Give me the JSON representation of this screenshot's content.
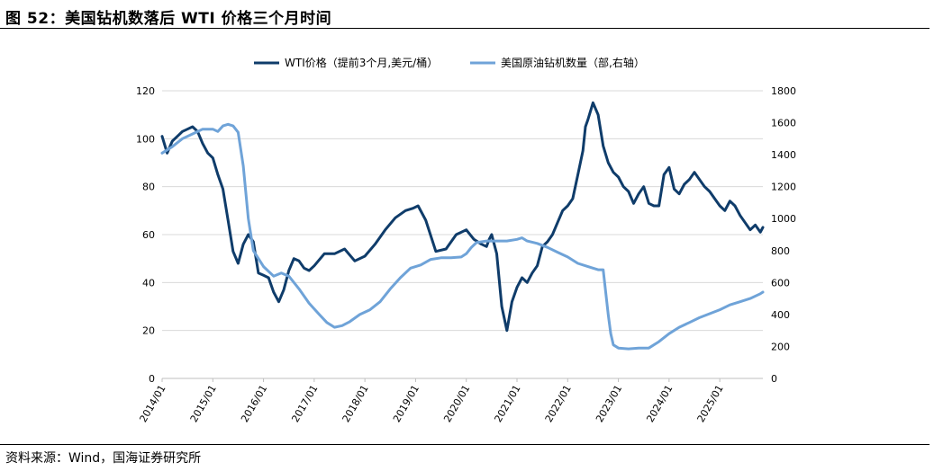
{
  "figure": {
    "title": "图 52：美国钻机数落后 WTI 价格三个月时间",
    "source": "资料来源：Wind，国海证券研究所"
  },
  "chart_data": {
    "type": "line",
    "title": "美国钻机数落后 WTI 价格三个月时间",
    "x_tick_labels": [
      "2014/01",
      "2015/01",
      "2016/01",
      "2017/01",
      "2018/01",
      "2019/01",
      "2020/01",
      "2021/01",
      "2022/01",
      "2023/01",
      "2024/01",
      "2025/01"
    ],
    "x_range": [
      2014.0,
      2025.85
    ],
    "left_axis": {
      "range": [
        0,
        120
      ],
      "ticks": [
        0,
        20,
        40,
        60,
        80,
        100,
        120
      ]
    },
    "right_axis": {
      "range": [
        0,
        1800
      ],
      "ticks": [
        0,
        200,
        400,
        600,
        800,
        1000,
        1200,
        1400,
        1600,
        1800
      ]
    },
    "legend_position": "top-center",
    "series": [
      {
        "name": "WTI价格（提前3个月,美元/桶）",
        "axis": "left",
        "color": "#0f3c6a",
        "x": [
          2014.0,
          2014.1,
          2014.2,
          2014.3,
          2014.4,
          2014.5,
          2014.6,
          2014.7,
          2014.8,
          2014.9,
          2015.0,
          2015.1,
          2015.2,
          2015.3,
          2015.4,
          2015.5,
          2015.6,
          2015.7,
          2015.8,
          2015.9,
          2016.0,
          2016.1,
          2016.2,
          2016.3,
          2016.4,
          2016.5,
          2016.6,
          2016.7,
          2016.8,
          2016.9,
          2017.0,
          2017.2,
          2017.4,
          2017.6,
          2017.8,
          2018.0,
          2018.2,
          2018.4,
          2018.6,
          2018.8,
          2018.95,
          2019.05,
          2019.2,
          2019.4,
          2019.6,
          2019.8,
          2020.0,
          2020.15,
          2020.3,
          2020.4,
          2020.45,
          2020.5,
          2020.6,
          2020.7,
          2020.8,
          2020.9,
          2021.0,
          2021.1,
          2021.2,
          2021.3,
          2021.4,
          2021.5,
          2021.6,
          2021.7,
          2021.8,
          2021.9,
          2022.0,
          2022.1,
          2022.2,
          2022.3,
          2022.35,
          2022.4,
          2022.5,
          2022.6,
          2022.7,
          2022.8,
          2022.9,
          2023.0,
          2023.1,
          2023.2,
          2023.3,
          2023.4,
          2023.5,
          2023.6,
          2023.7,
          2023.8,
          2023.9,
          2024.0,
          2024.1,
          2024.2,
          2024.3,
          2024.4,
          2024.5,
          2024.6,
          2024.7,
          2024.8,
          2024.9,
          2025.0,
          2025.1,
          2025.2,
          2025.3,
          2025.4,
          2025.5,
          2025.6,
          2025.7,
          2025.8,
          2025.85
        ],
        "values": [
          101,
          94,
          99,
          101,
          103,
          104,
          105,
          103,
          98,
          94,
          92,
          85,
          79,
          66,
          53,
          48,
          56,
          60,
          57,
          44,
          43,
          42,
          36,
          32,
          37,
          45,
          50,
          49,
          46,
          45,
          47,
          52,
          52,
          54,
          49,
          51,
          56,
          62,
          67,
          70,
          71,
          72,
          66,
          53,
          54,
          60,
          62,
          58,
          56,
          55,
          58,
          60,
          52,
          30,
          20,
          32,
          38,
          42,
          40,
          44,
          47,
          55,
          57,
          60,
          65,
          70,
          72,
          75,
          85,
          95,
          105,
          108,
          115,
          110,
          97,
          90,
          86,
          84,
          80,
          78,
          73,
          77,
          80,
          73,
          72,
          72,
          85,
          88,
          79,
          77,
          81,
          83,
          86,
          83,
          80,
          78,
          75,
          72,
          70,
          74,
          72,
          68,
          65,
          62,
          64,
          61,
          63
        ]
      },
      {
        "name": "美国原油钻机数量（部,右轴）",
        "axis": "right",
        "color": "#6fa3d8",
        "x": [
          2014.0,
          2014.2,
          2014.4,
          2014.6,
          2014.8,
          2015.0,
          2015.1,
          2015.2,
          2015.3,
          2015.4,
          2015.5,
          2015.6,
          2015.7,
          2015.8,
          2016.0,
          2016.2,
          2016.35,
          2016.5,
          2016.7,
          2016.9,
          2017.1,
          2017.25,
          2017.4,
          2017.55,
          2017.7,
          2017.9,
          2018.1,
          2018.3,
          2018.5,
          2018.7,
          2018.9,
          2019.1,
          2019.3,
          2019.5,
          2019.7,
          2019.9,
          2020.0,
          2020.1,
          2020.2,
          2020.4,
          2020.6,
          2020.8,
          2021.0,
          2021.1,
          2021.2,
          2021.4,
          2021.6,
          2021.8,
          2022.0,
          2022.2,
          2022.4,
          2022.5,
          2022.6,
          2022.65,
          2022.7,
          2022.75,
          2022.8,
          2022.85,
          2022.9,
          2023.0,
          2023.2,
          2023.4,
          2023.6,
          2023.8,
          2024.0,
          2024.2,
          2024.4,
          2024.6,
          2024.8,
          2025.0,
          2025.2,
          2025.4,
          2025.6,
          2025.8,
          2025.85
        ],
        "values": [
          1410,
          1450,
          1500,
          1530,
          1560,
          1560,
          1545,
          1580,
          1590,
          1580,
          1540,
          1330,
          1000,
          800,
          700,
          640,
          660,
          640,
          560,
          470,
          400,
          350,
          320,
          330,
          355,
          400,
          430,
          480,
          560,
          630,
          690,
          710,
          745,
          755,
          755,
          760,
          780,
          820,
          850,
          860,
          860,
          860,
          870,
          880,
          860,
          845,
          820,
          790,
          760,
          720,
          700,
          690,
          680,
          680,
          680,
          540,
          400,
          280,
          210,
          190,
          185,
          190,
          190,
          230,
          280,
          320,
          350,
          380,
          405,
          430,
          460,
          480,
          500,
          530,
          540
        ]
      }
    ]
  }
}
